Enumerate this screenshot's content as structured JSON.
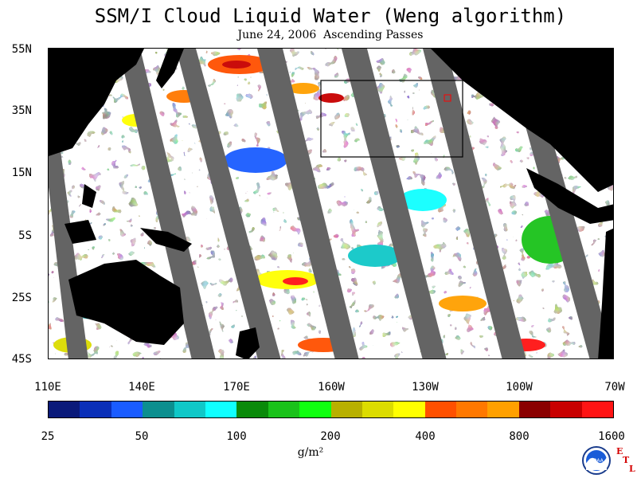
{
  "title": "SSM/I Cloud Liquid Water (Weng algorithm)",
  "subtitle": "June 24, 2006  Ascending Passes",
  "lat_labels": [
    "55N",
    "35N",
    "15N",
    "5S",
    "25S",
    "45S"
  ],
  "lon_labels": [
    "110E",
    "140E",
    "170E",
    "160W",
    "130W",
    "100W",
    "70W"
  ],
  "colorbar": {
    "colors": [
      "#0a1a7a",
      "#0a2fb8",
      "#1a5cff",
      "#0c8f8f",
      "#10c8c8",
      "#10ffff",
      "#0a8a0a",
      "#1ac21a",
      "#10ff10",
      "#b8b000",
      "#dcdc00",
      "#ffff00",
      "#ff5000",
      "#ff7800",
      "#ffa000",
      "#8a0000",
      "#c80000",
      "#ff1414"
    ],
    "tick_labels": [
      "25",
      "50",
      "100",
      "200",
      "400",
      "800",
      "1600"
    ],
    "units": "g/m²"
  },
  "logo": {
    "name": "noaa-logo",
    "text": "NOAA",
    "etl_letters": [
      "E",
      "T",
      "L"
    ]
  },
  "colors": {
    "land": "#000000",
    "no_data_swath": "#646464",
    "ocean_clear": "#ffffff",
    "box_outline": "#000000",
    "marker": "#ff0000"
  }
}
